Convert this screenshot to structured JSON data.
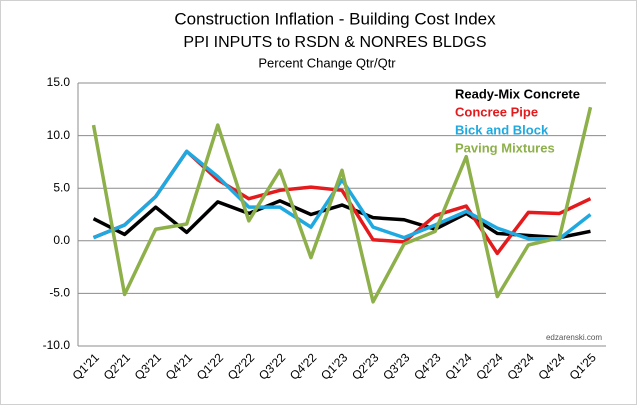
{
  "chart_data": {
    "type": "line",
    "title": "Construction Inflation - Building Cost Index",
    "subtitle": "PPI INPUTS  to RSDN & NONRES BLDGS",
    "y_label": "Percent Change Qtr/Qtr",
    "annotation": "edzarenski.com",
    "categories": [
      "Q1'21",
      "Q2'21",
      "Q3'21",
      "Q4'21",
      "Q1'22",
      "Q2'22",
      "Q3'22",
      "Q4'22",
      "Q1'23",
      "Q2'23",
      "Q3'23",
      "Q4'23",
      "Q1'24",
      "Q2'24",
      "Q3'24",
      "Q4'24",
      "Q1'25"
    ],
    "series": [
      {
        "name": "Ready-Mix Concrete",
        "color": "#000000",
        "values": [
          2.1,
          0.6,
          3.2,
          0.8,
          3.7,
          2.6,
          3.8,
          2.5,
          3.4,
          2.2,
          2.0,
          1.1,
          2.6,
          0.7,
          0.5,
          0.3,
          0.9
        ]
      },
      {
        "name": "Concree Pipe",
        "color": "#e41a1c",
        "values": [
          0.3,
          1.5,
          4.2,
          8.5,
          5.8,
          4.0,
          4.8,
          5.1,
          4.8,
          0.1,
          -0.1,
          2.4,
          3.3,
          -1.2,
          2.7,
          2.6,
          4.0
        ]
      },
      {
        "name": "Bick and Block",
        "color": "#1fa9e1",
        "values": [
          0.3,
          1.5,
          4.2,
          8.5,
          6.1,
          3.2,
          3.2,
          1.3,
          5.8,
          1.3,
          0.3,
          1.5,
          2.8,
          1.2,
          0.2,
          0.2,
          2.5
        ]
      },
      {
        "name": "Paving Mixtures",
        "color": "#8db04a",
        "values": [
          11.0,
          -5.1,
          1.1,
          1.6,
          11.0,
          1.9,
          6.7,
          -1.6,
          6.7,
          -5.8,
          -0.3,
          0.9,
          8.0,
          -5.3,
          -0.4,
          0.3,
          12.7
        ]
      }
    ],
    "ylim": [
      -10,
      15
    ],
    "yticks": [
      {
        "value": -10,
        "label": "-10.0"
      },
      {
        "value": -5,
        "label": "-5.0"
      },
      {
        "value": 0,
        "label": "0.0"
      },
      {
        "value": 5,
        "label": "5.0"
      },
      {
        "value": 10,
        "label": "10.0"
      },
      {
        "value": 15,
        "label": "15.0"
      }
    ],
    "grid": true
  }
}
